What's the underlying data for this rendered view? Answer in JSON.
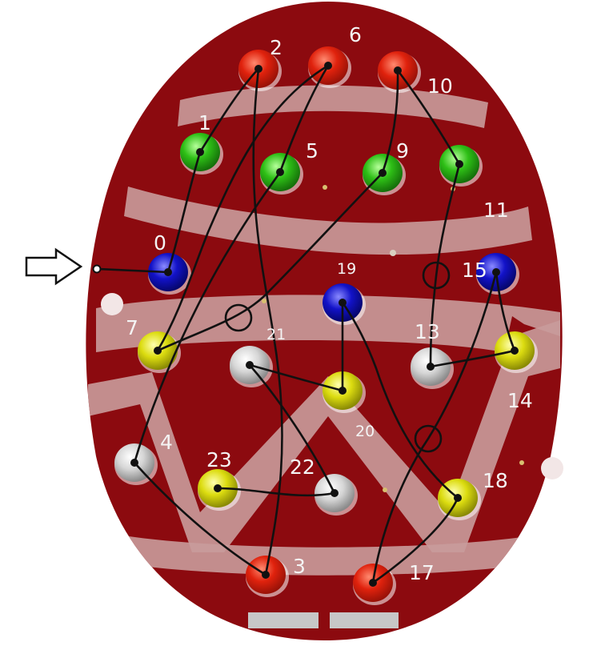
{
  "colors": {
    "egg": "#8c0a0f",
    "stripe": "#c99b9b",
    "red_led": "#e0220d",
    "green_led": "#2ebf16",
    "blue_led": "#1212c8",
    "yellow_led": "#dcdc10",
    "white_led": "#d6d6d6",
    "wire": "#111111",
    "label": "#f4f4f4"
  },
  "icons": {
    "input_arrow": "arrow-right-outline-icon"
  },
  "leds": [
    {
      "id": "0",
      "color": "blue"
    },
    {
      "id": "1",
      "color": "green"
    },
    {
      "id": "2",
      "color": "red"
    },
    {
      "id": "3",
      "color": "red"
    },
    {
      "id": "4",
      "color": "white"
    },
    {
      "id": "5",
      "color": "green"
    },
    {
      "id": "6",
      "color": "red"
    },
    {
      "id": "7",
      "color": "yellow"
    },
    {
      "id": "9",
      "color": "green"
    },
    {
      "id": "10",
      "color": "red"
    },
    {
      "id": "11",
      "color": "green"
    },
    {
      "id": "13",
      "color": "white"
    },
    {
      "id": "14",
      "color": "yellow"
    },
    {
      "id": "15",
      "color": "blue"
    },
    {
      "id": "17",
      "color": "red"
    },
    {
      "id": "18",
      "color": "yellow"
    },
    {
      "id": "19",
      "color": "blue"
    },
    {
      "id": "20",
      "color": "yellow"
    },
    {
      "id": "21",
      "color": "white"
    },
    {
      "id": "22",
      "color": "white"
    },
    {
      "id": "23",
      "color": "yellow"
    }
  ],
  "chain": [
    "0",
    "1",
    "2",
    "3",
    "4",
    "5",
    "6",
    "7",
    "9",
    "10",
    "11",
    "13",
    "14",
    "15",
    "17",
    "18",
    "19",
    "20",
    "21",
    "22",
    "23"
  ],
  "labels": {
    "l0": "0",
    "l1": "1",
    "l2": "2",
    "l3": "3",
    "l4": "4",
    "l5": "5",
    "l6": "6",
    "l7": "7",
    "l9": "9",
    "l10": "10",
    "l11": "11",
    "l13": "13",
    "l14": "14",
    "l15": "15",
    "l17": "17",
    "l18": "18",
    "l19": "19",
    "l20": "20",
    "l21": "21",
    "l22": "22",
    "l23": "23"
  }
}
